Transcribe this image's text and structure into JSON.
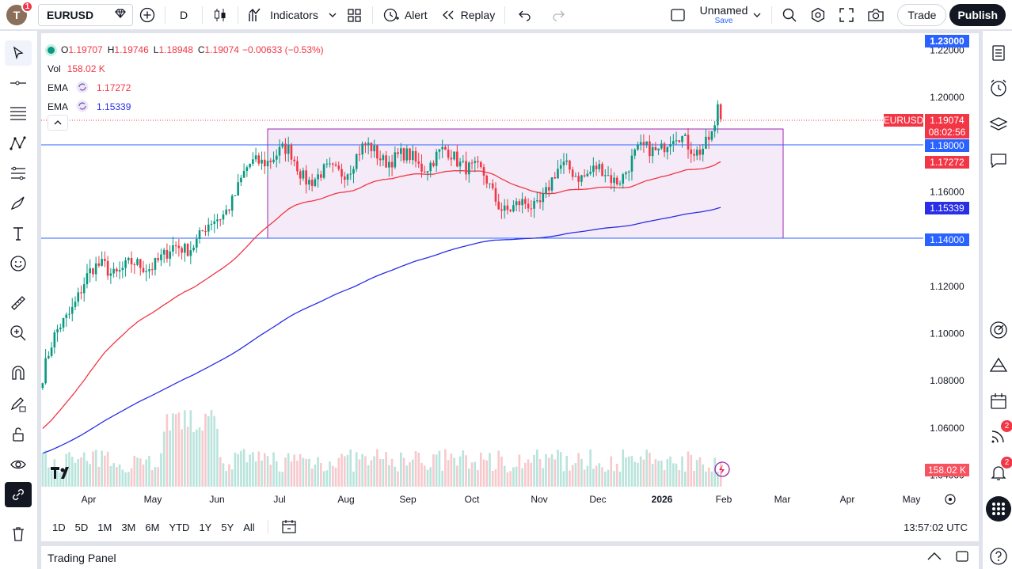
{
  "topbar": {
    "avatar_letter": "T",
    "avatar_badge": "1",
    "symbol": "EURUSD",
    "interval": "D",
    "indicators_label": "Indicators",
    "alert_label": "Alert",
    "replay_label": "Replay",
    "layout_name": "Unnamed",
    "layout_save": "Save",
    "trade_label": "Trade",
    "publish_label": "Publish"
  },
  "legend": {
    "o_label": "O",
    "o": "1.19707",
    "h_label": "H",
    "h": "1.19746",
    "l_label": "L",
    "l": "1.18948",
    "c_label": "C",
    "c": "1.19074",
    "change": "−0.00633 (−0.53%)",
    "vol_label": "Vol",
    "vol": "158.02 K",
    "ema1_label": "EMA",
    "ema1": "1.17272",
    "ema2_label": "EMA",
    "ema2": "1.15339"
  },
  "price_axis": {
    "ticks": [
      "1.22000",
      "1.20000",
      "1.16000",
      "1.12000",
      "1.10000",
      "1.08000",
      "1.06000",
      "1.04000"
    ],
    "label_top": "1.23000",
    "label_symbol": "EURUSD",
    "label_price": "1.19074",
    "label_countdown": "08:02:56",
    "label_1180": "1.18000",
    "label_ema1": "1.17272",
    "label_ema2": "1.15339",
    "label_1140": "1.14000",
    "label_vol": "158.02 K"
  },
  "time_axis": {
    "labels": [
      "Apr",
      "May",
      "Jun",
      "Jul",
      "Aug",
      "Sep",
      "Oct",
      "Nov",
      "Dec",
      "2026",
      "Feb",
      "Mar",
      "Apr",
      "May"
    ]
  },
  "bottom": {
    "ranges": [
      "1D",
      "5D",
      "1M",
      "3M",
      "6M",
      "YTD",
      "1Y",
      "5Y",
      "All"
    ],
    "clock": "13:57:02 UTC"
  },
  "trading_panel": {
    "title": "Trading Panel"
  },
  "right_badges": {
    "ideas": "2",
    "alerts": "2"
  },
  "colors": {
    "up": "#089981",
    "down": "#f23645",
    "ema_fast": "#f23645",
    "ema_slow": "#2a2ee6",
    "box_fill": "#f5e6f7",
    "box_border": "#9c27b0",
    "hline": "#2962ff",
    "accent": "#131722"
  },
  "chart_data": {
    "type": "candlestick",
    "symbol": "EURUSD",
    "interval": "D",
    "ylim": [
      1.04,
      1.23
    ],
    "x_range": [
      "Mar",
      "May"
    ],
    "last": {
      "open": 1.19707,
      "high": 1.19746,
      "low": 1.18948,
      "close": 1.19074,
      "change": -0.00633,
      "change_pct": -0.53
    },
    "horizontal_lines": [
      1.18,
      1.14
    ],
    "range_box": {
      "from": "Jul",
      "to": "Jan",
      "top": 1.1865,
      "bottom": 1.14
    },
    "ema_fast_last": 1.17272,
    "ema_slow_last": 1.15339,
    "volume_last": "158.02 K",
    "monthly_path": [
      {
        "month": "Mar",
        "value": 1.082
      },
      {
        "month": "Apr",
        "value": 1.135
      },
      {
        "month": "May",
        "value": 1.125
      },
      {
        "month": "Jun",
        "value": 1.16
      },
      {
        "month": "Jul",
        "value": 1.175
      },
      {
        "month": "Aug",
        "value": 1.168
      },
      {
        "month": "Sep",
        "value": 1.18
      },
      {
        "month": "Oct",
        "value": 1.165
      },
      {
        "month": "Nov",
        "value": 1.155
      },
      {
        "month": "Dec",
        "value": 1.172
      },
      {
        "month": "Jan",
        "value": 1.174
      },
      {
        "month": "Feb",
        "value": 1.19074
      }
    ]
  }
}
